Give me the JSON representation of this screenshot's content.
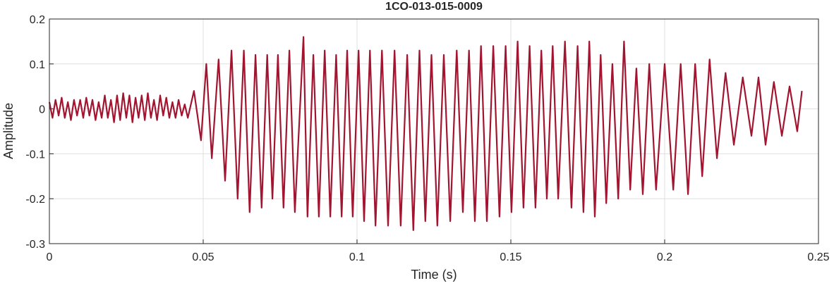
{
  "chart_data": {
    "type": "line",
    "title": "1CO-013-015-0009",
    "xlabel": "Time (s)",
    "ylabel": "Amplitude",
    "color": "#a2142f",
    "grid": true,
    "xlim": [
      0,
      0.25
    ],
    "ylim": [
      -0.3,
      0.2
    ],
    "xticks": [
      0,
      0.05,
      0.1,
      0.15,
      0.2,
      0.25
    ],
    "yticks": [
      -0.3,
      -0.2,
      -0.1,
      0,
      0.1,
      0.2
    ],
    "x": [
      0,
      0.001,
      0.002,
      0.003,
      0.004,
      0.005,
      0.006,
      0.007,
      0.008,
      0.009,
      0.01,
      0.011,
      0.012,
      0.013,
      0.014,
      0.015,
      0.016,
      0.017,
      0.018,
      0.019,
      0.02,
      0.021,
      0.022,
      0.023,
      0.024,
      0.025,
      0.026,
      0.027,
      0.028,
      0.029,
      0.03,
      0.031,
      0.032,
      0.033,
      0.034,
      0.035,
      0.036,
      0.037,
      0.038,
      0.039,
      0.04,
      0.041,
      0.042,
      0.043,
      0.044,
      0.045,
      0.047,
      0.0493,
      0.051,
      0.0528,
      0.055,
      0.0571,
      0.0592,
      0.0612,
      0.0632,
      0.0651,
      0.067,
      0.069,
      0.0708,
      0.0725,
      0.0743,
      0.0761,
      0.078,
      0.0798,
      0.0826,
      0.0839,
      0.0858,
      0.0876,
      0.0895,
      0.0913,
      0.0932,
      0.095,
      0.0968,
      0.0986,
      0.1005,
      0.1023,
      0.1042,
      0.106,
      0.1081,
      0.1101,
      0.1122,
      0.1142,
      0.1163,
      0.1183,
      0.1203,
      0.1222,
      0.1242,
      0.1261,
      0.1282,
      0.1303,
      0.1324,
      0.1344,
      0.1364,
      0.1383,
      0.1403,
      0.1422,
      0.1443,
      0.1463,
      0.1483,
      0.1502,
      0.1522,
      0.1541,
      0.1561,
      0.158,
      0.1599,
      0.1617,
      0.1636,
      0.1654,
      0.1676,
      0.1697,
      0.1717,
      0.1736,
      0.1755,
      0.1773,
      0.1792,
      0.181,
      0.183,
      0.1849,
      0.1868,
      0.1888,
      0.1908,
      0.1929,
      0.195,
      0.1972,
      0.2,
      0.2028,
      0.2052,
      0.2076,
      0.2099,
      0.2122,
      0.2146,
      0.217,
      0.2198,
      0.2225,
      0.2254,
      0.2282,
      0.2305,
      0.2328,
      0.2355,
      0.2381,
      0.2406,
      0.2431,
      0.2446
    ],
    "values": [
      0.015,
      -0.02,
      0.02,
      -0.015,
      0.025,
      -0.02,
      0.015,
      -0.025,
      0.02,
      -0.015,
      0.02,
      -0.02,
      0.025,
      -0.015,
      0.02,
      -0.025,
      0.015,
      -0.02,
      0.03,
      -0.02,
      0.02,
      -0.03,
      0.03,
      -0.025,
      0.035,
      -0.02,
      0.03,
      -0.03,
      0.025,
      -0.02,
      0.03,
      -0.025,
      0.035,
      -0.02,
      0.02,
      -0.025,
      0.03,
      -0.015,
      0.025,
      -0.02,
      0.015,
      -0.02,
      0.02,
      -0.015,
      0.01,
      -0.02,
      0.04,
      -0.07,
      0.1,
      -0.11,
      0.11,
      -0.16,
      0.13,
      -0.2,
      0.13,
      -0.23,
      0.12,
      -0.22,
      0.12,
      -0.2,
      0.12,
      -0.22,
      0.13,
      -0.23,
      0.16,
      -0.24,
      0.12,
      -0.24,
      0.13,
      -0.24,
      0.12,
      -0.24,
      0.13,
      -0.24,
      0.13,
      -0.25,
      0.13,
      -0.26,
      0.13,
      -0.26,
      0.13,
      -0.26,
      0.12,
      -0.27,
      0.13,
      -0.25,
      0.12,
      -0.26,
      0.12,
      -0.25,
      0.13,
      -0.23,
      0.13,
      -0.25,
      0.14,
      -0.25,
      0.14,
      -0.24,
      0.14,
      -0.23,
      0.15,
      -0.22,
      0.14,
      -0.22,
      0.13,
      -0.2,
      0.14,
      -0.2,
      0.15,
      -0.22,
      0.14,
      -0.23,
      0.15,
      -0.24,
      0.12,
      -0.21,
      0.1,
      -0.2,
      0.15,
      -0.18,
      0.09,
      -0.19,
      0.1,
      -0.18,
      0.1,
      -0.18,
      0.1,
      -0.19,
      0.1,
      -0.15,
      0.11,
      -0.11,
      0.08,
      -0.08,
      0.07,
      -0.06,
      0.07,
      -0.08,
      0.06,
      -0.06,
      0.05,
      -0.05,
      0.04
    ]
  }
}
